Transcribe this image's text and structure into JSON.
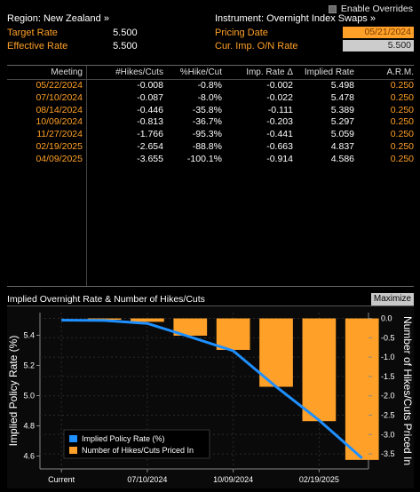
{
  "header": {
    "region_label": "Region: New Zealand »",
    "instrument_label": "Instrument: Overnight Index Swaps »",
    "enable_overrides": "Enable Overrides",
    "target_rate_label": "Target Rate",
    "target_rate_value": "5.500",
    "effective_rate_label": "Effective Rate",
    "effective_rate_value": "5.500",
    "pricing_date_label": "Pricing Date",
    "pricing_date_value": "05/21/2024",
    "cur_imp_label": "Cur. Imp. O/N Rate",
    "cur_imp_value": "5.500"
  },
  "table": {
    "columns": [
      "Meeting",
      "#Hikes/Cuts",
      "%Hike/Cut",
      "Imp. Rate Δ",
      "Implied Rate",
      "A.R.M."
    ],
    "rows": [
      [
        "05/22/2024",
        "-0.008",
        "-0.8%",
        "-0.002",
        "5.498",
        "0.250"
      ],
      [
        "07/10/2024",
        "-0.087",
        "-8.0%",
        "-0.022",
        "5.478",
        "0.250"
      ],
      [
        "08/14/2024",
        "-0.446",
        "-35.8%",
        "-0.111",
        "5.389",
        "0.250"
      ],
      [
        "10/09/2024",
        "-0.813",
        "-36.7%",
        "-0.203",
        "5.297",
        "0.250"
      ],
      [
        "11/27/2024",
        "-1.766",
        "-95.3%",
        "-0.441",
        "5.059",
        "0.250"
      ],
      [
        "02/19/2025",
        "-2.654",
        "-88.8%",
        "-0.663",
        "4.837",
        "0.250"
      ],
      [
        "04/09/2025",
        "-3.655",
        "-100.1%",
        "-0.914",
        "4.586",
        "0.250"
      ]
    ]
  },
  "chart_title": "Implied Overnight Rate & Number of Hikes/Cuts",
  "maximize_label": "Maximize",
  "chart_data": {
    "type": "bar",
    "categories": [
      "Current",
      "05/22/2024",
      "07/10/2024",
      "08/14/2024",
      "10/09/2024",
      "11/27/2024",
      "02/19/2025",
      "04/09/2025"
    ],
    "x_tick_labels": [
      "Current",
      "07/10/2024",
      "10/09/2024",
      "02/19/2025"
    ],
    "series": [
      {
        "name": "Implied Policy Rate (%)",
        "type": "line",
        "axis": "left",
        "values": [
          5.5,
          5.498,
          5.478,
          5.389,
          5.297,
          5.059,
          4.837,
          4.586
        ],
        "color": "#1e90ff"
      },
      {
        "name": "Number of Hikes/Cuts Priced In",
        "type": "bar",
        "axis": "right",
        "values": [
          null,
          -0.008,
          -0.087,
          -0.446,
          -0.813,
          -1.766,
          -2.654,
          -3.655
        ],
        "color": "#ffa028"
      }
    ],
    "ylabel": "Implied Policy Rate (%)",
    "ylabel_right": "Number of Hikes/Cuts Priced In",
    "ylim": [
      4.55,
      5.55
    ],
    "ylim_right": [
      -3.75,
      0.15
    ],
    "yticks": [
      "5.4",
      "5.2",
      "5.0",
      "4.8",
      "4.6"
    ],
    "yticks_right": [
      "0.0",
      "-0.5",
      "-1.0",
      "-1.5",
      "-2.0",
      "-2.5",
      "-3.0",
      "-3.5"
    ],
    "legend_position": "bottom-left"
  },
  "colors": {
    "accent": "#ffa028",
    "line": "#1e90ff",
    "background": "#000000"
  }
}
